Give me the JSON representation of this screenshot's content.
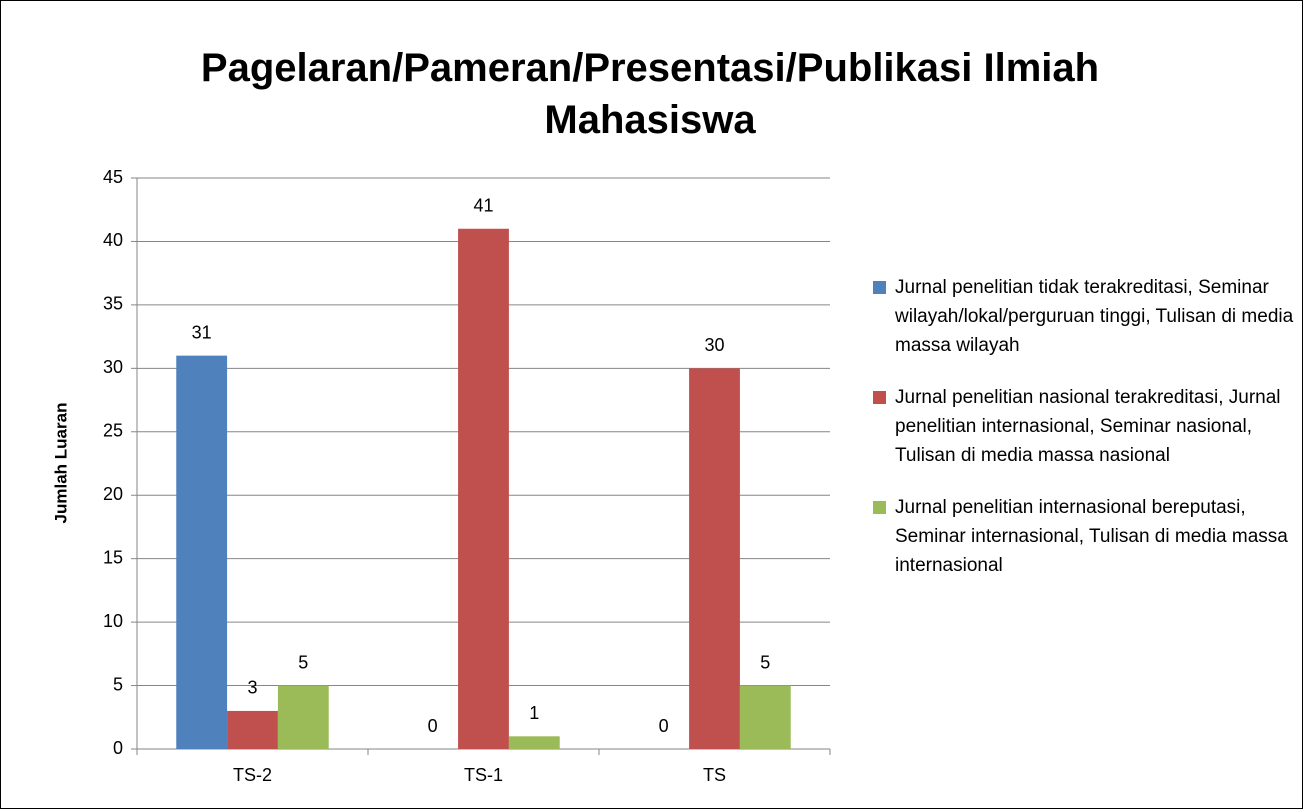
{
  "chart_data": {
    "type": "bar",
    "title": "Pagelaran/Pameran/Presentasi/Publikasi Ilmiah Mahasiswa",
    "y_label": "Jumlah Luaran",
    "categories": [
      "TS-2",
      "TS-1",
      "TS"
    ],
    "series": [
      {
        "name": "Jurnal penelitian tidak terakreditasi, Seminar wilayah/lokal/perguruan tinggi, Tulisan di media massa wilayah",
        "color": "#4f81bd",
        "values": [
          31,
          0,
          0
        ]
      },
      {
        "name": "Jurnal penelitian nasional terakreditasi, Jurnal penelitian internasional, Seminar nasional, Tulisan di media massa nasional",
        "color": "#c0504d",
        "values": [
          3,
          41,
          30
        ]
      },
      {
        "name": "Jurnal penelitian internasional bereputasi, Seminar internasional, Tulisan di media massa internasional",
        "color": "#9bbb59",
        "values": [
          5,
          1,
          5
        ]
      }
    ],
    "ylim": [
      0,
      45
    ],
    "yticks": [
      0,
      5,
      10,
      15,
      20,
      25,
      30,
      35,
      40,
      45
    ],
    "grid": true,
    "legend": "right"
  }
}
